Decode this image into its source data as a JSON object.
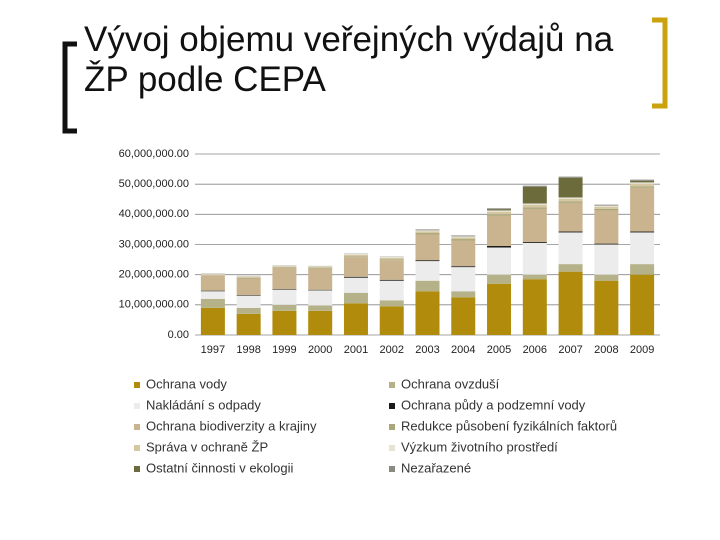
{
  "chart_data": {
    "type": "stacked-bar",
    "title": "Vývoj objemu veřejných výdajů na ŽP podle CEPA",
    "categories": [
      "1997",
      "1998",
      "1999",
      "2000",
      "2001",
      "2002",
      "2003",
      "2004",
      "2005",
      "2006",
      "2007",
      "2008",
      "2009"
    ],
    "ylim": [
      0,
      60000000
    ],
    "yticks": [
      {
        "value": 0,
        "label": "0.00"
      },
      {
        "value": 10000000,
        "label": "10,000,000.00"
      },
      {
        "value": 20000000,
        "label": "20,000,000.00"
      },
      {
        "value": 30000000,
        "label": "30,000,000.00"
      },
      {
        "value": 40000000,
        "label": "40,000,000.00"
      },
      {
        "value": 50000000,
        "label": "50,000,000.00"
      },
      {
        "value": 60000000,
        "label": "60,000,000.00"
      }
    ],
    "grid": true,
    "series": [
      {
        "name": "Ochrana vody",
        "color": "#b08b0c",
        "values": [
          9000000,
          7000000,
          8000000,
          8000000,
          10500000,
          9500000,
          14500000,
          12500000,
          17000000,
          18500000,
          21000000,
          18000000,
          20000000
        ]
      },
      {
        "name": "Ochrana ovzduší",
        "color": "#b5b28a",
        "values": [
          3000000,
          2000000,
          2000000,
          1800000,
          3500000,
          2000000,
          3500000,
          2000000,
          3000000,
          1500000,
          2500000,
          2000000,
          3500000
        ]
      },
      {
        "name": "Nakládání s odpady",
        "color": "#ececec",
        "values": [
          2500000,
          4000000,
          5000000,
          5000000,
          5000000,
          6500000,
          6500000,
          8000000,
          9000000,
          10500000,
          10500000,
          10000000,
          10500000
        ]
      },
      {
        "name": "Ochrana půdy a podzemní vody",
        "color": "#1a1a1a",
        "values": [
          200000,
          200000,
          200000,
          200000,
          300000,
          300000,
          300000,
          300000,
          500000,
          300000,
          300000,
          300000,
          300000
        ]
      },
      {
        "name": "Ochrana biodiverzity a krajiny",
        "color": "#c9b48f",
        "values": [
          5000000,
          5500000,
          7000000,
          7000000,
          6500000,
          6500000,
          8500000,
          8500000,
          10000000,
          11000000,
          9500000,
          11000000,
          14500000
        ]
      },
      {
        "name": "Redukce působení fyzikálních faktorů",
        "color": "#a9a67a",
        "values": [
          100000,
          200000,
          200000,
          200000,
          300000,
          300000,
          500000,
          500000,
          500000,
          500000,
          500000,
          500000,
          500000
        ]
      },
      {
        "name": "Správa v ochraně ŽP",
        "color": "#d6c7a3",
        "values": [
          300000,
          400000,
          300000,
          400000,
          500000,
          500000,
          500000,
          500000,
          800000,
          800000,
          800000,
          700000,
          800000
        ]
      },
      {
        "name": "Výzkum životního prostředí",
        "color": "#e6e3d2",
        "values": [
          200000,
          200000,
          200000,
          200000,
          300000,
          300000,
          400000,
          400000,
          500000,
          500000,
          500000,
          400000,
          500000
        ]
      },
      {
        "name": "Ostatní činnosti v ekologii",
        "color": "#6b6b3c",
        "values": [
          0,
          0,
          0,
          0,
          0,
          0,
          0,
          0,
          300000,
          5500000,
          6500000,
          0,
          500000
        ]
      },
      {
        "name": "Nezařazené",
        "color": "#8a8a80",
        "values": [
          100000,
          100000,
          100000,
          100000,
          100000,
          100000,
          300000,
          300000,
          400000,
          400000,
          400000,
          300000,
          400000
        ]
      }
    ]
  }
}
